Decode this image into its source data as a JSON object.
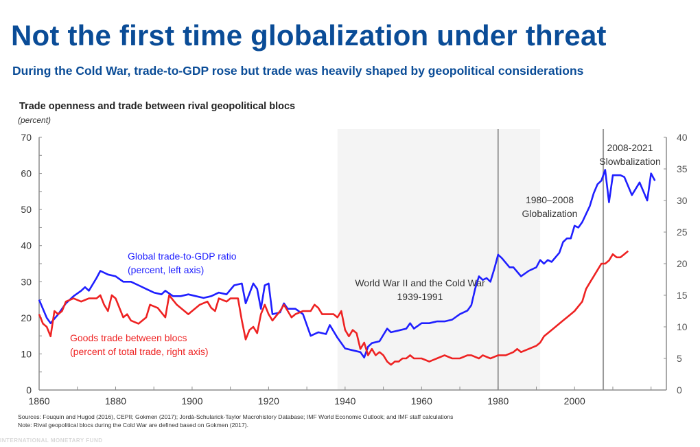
{
  "header": {
    "title": "Not the first time globalization under threat",
    "subtitle": "During the Cold War, trade-to-GDP rose but trade was heavily shaped by geopolitical considerations"
  },
  "colors": {
    "title": "#0a4c97",
    "blue_series": "#1f1fff",
    "red_series": "#ee2222",
    "shade": "#f4f4f4",
    "axis": "#8c8c8c"
  },
  "chart_data": {
    "type": "line",
    "title": "Trade openness and trade between rival geopolitical blocs",
    "unit": "(percent)",
    "xlabel": "",
    "xlim": [
      1860,
      2024
    ],
    "x_ticks": [
      1860,
      1880,
      1900,
      1920,
      1940,
      1960,
      1980,
      2000
    ],
    "x_minor_step": 10,
    "left_axis": {
      "ylim": [
        0,
        70
      ],
      "ticks": [
        0,
        10,
        20,
        30,
        40,
        50,
        60,
        70
      ]
    },
    "right_axis": {
      "ylim": [
        0,
        40
      ],
      "ticks": [
        0,
        5,
        10,
        15,
        20,
        25,
        30,
        35,
        40
      ]
    },
    "grid": false,
    "shaded_periods": [
      {
        "start": 1938,
        "end": 1991,
        "label_lines": [
          "World War II and the Cold War",
          "1939-1991"
        ]
      }
    ],
    "vertical_lines": [
      1980,
      2007.5
    ],
    "annotations": [
      {
        "year": 1994,
        "value": 50,
        "axis": "left",
        "lines": [
          "1980–2008",
          "Globalization"
        ]
      },
      {
        "year": 2015,
        "value": 65,
        "axis": "left",
        "lines": [
          "2008-2021",
          "Slowbalization"
        ]
      }
    ],
    "series": [
      {
        "name": "Global trade-to-GDP ratio",
        "label_lines": [
          "Global trade-to-GDP ratio",
          "(percent, left axis)"
        ],
        "axis": "left",
        "color": "#1f1fff",
        "x": [
          1860,
          1862,
          1863,
          1865,
          1867,
          1869,
          1871,
          1872,
          1873,
          1875,
          1876,
          1878,
          1880,
          1882,
          1884,
          1886,
          1888,
          1890,
          1892,
          1893,
          1895,
          1897,
          1899,
          1901,
          1903,
          1905,
          1907,
          1909,
          1911,
          1913,
          1914,
          1916,
          1917,
          1918,
          1919,
          1920,
          1921,
          1923,
          1924,
          1925,
          1927,
          1929,
          1931,
          1933,
          1935,
          1936,
          1938,
          1940,
          1942,
          1944,
          1945,
          1946,
          1947,
          1949,
          1951,
          1952,
          1954,
          1956,
          1957,
          1958,
          1960,
          1962,
          1964,
          1966,
          1968,
          1970,
          1972,
          1973,
          1974,
          1975,
          1976,
          1977,
          1978,
          1979,
          1980,
          1981,
          1983,
          1984,
          1986,
          1988,
          1990,
          1991,
          1992,
          1993,
          1994,
          1996,
          1997,
          1998,
          1999,
          2000,
          2001,
          2002,
          2004,
          2005,
          2006,
          2007,
          2008,
          2009,
          2010,
          2012,
          2013,
          2015,
          2017,
          2018,
          2019,
          2020,
          2021
        ],
        "values": [
          25,
          20,
          18.5,
          21,
          24,
          26,
          27.5,
          28.5,
          27.5,
          31,
          33,
          32,
          31.5,
          30,
          30,
          29,
          28,
          27,
          26.5,
          27.5,
          26,
          26,
          26.5,
          26,
          25.5,
          26,
          27,
          26.5,
          29,
          29.5,
          24,
          29.5,
          28,
          22.5,
          29,
          29.5,
          21,
          21.5,
          24,
          22.5,
          22.5,
          21,
          15,
          16,
          15.5,
          18,
          14.5,
          11.5,
          11,
          10.5,
          9,
          12,
          13,
          13.5,
          17,
          16,
          16.5,
          17,
          18.5,
          17,
          18.5,
          18.5,
          19,
          19,
          19.5,
          21,
          22,
          23.5,
          28,
          31.5,
          30.5,
          31,
          30,
          33.5,
          37.5,
          36.5,
          34,
          34,
          31.5,
          33,
          34,
          36,
          35,
          36,
          35.5,
          38,
          41,
          42,
          42,
          45.5,
          45,
          46.5,
          51,
          54.5,
          57,
          58,
          61,
          52,
          59.5,
          59.5,
          59,
          54,
          57.5,
          55,
          52.5,
          60,
          58
        ]
      },
      {
        "name": "Goods trade between blocs",
        "label_lines": [
          "Goods trade between blocs",
          "(percent of total trade, right axis)"
        ],
        "axis": "right",
        "color": "#ee2222",
        "x": [
          1860,
          1861,
          1862,
          1863,
          1864,
          1865,
          1866,
          1867,
          1869,
          1871,
          1873,
          1875,
          1876,
          1877,
          1878,
          1879,
          1880,
          1882,
          1883,
          1884,
          1886,
          1888,
          1889,
          1891,
          1893,
          1894,
          1896,
          1898,
          1899,
          1900,
          1902,
          1904,
          1905,
          1906,
          1907,
          1909,
          1910,
          1912,
          1913,
          1914,
          1915,
          1916,
          1917,
          1918,
          1919,
          1920,
          1921,
          1923,
          1924,
          1925,
          1926,
          1927,
          1929,
          1931,
          1932,
          1933,
          1934,
          1935,
          1937,
          1938,
          1939,
          1940,
          1941,
          1942,
          1943,
          1944,
          1945,
          1946,
          1947,
          1948,
          1949,
          1950,
          1951,
          1952,
          1953,
          1954,
          1955,
          1956,
          1957,
          1958,
          1960,
          1962,
          1964,
          1966,
          1968,
          1970,
          1972,
          1973,
          1975,
          1976,
          1978,
          1980,
          1982,
          1984,
          1985,
          1986,
          1988,
          1990,
          1991,
          1992,
          1993,
          1995,
          1997,
          1998,
          1999,
          2000,
          2002,
          2003,
          2004,
          2005,
          2006,
          2007,
          2008,
          2009,
          2010,
          2011,
          2012,
          2013,
          2014
        ],
        "values": [
          12,
          10.5,
          10,
          8.5,
          12.5,
          12,
          12.5,
          14,
          14.5,
          14,
          14.5,
          14.5,
          15,
          13.5,
          12.5,
          15,
          14.5,
          11.5,
          12,
          11,
          10.5,
          11.5,
          13.5,
          13,
          11.5,
          15,
          13.5,
          12.5,
          12,
          12.5,
          13.5,
          14,
          13,
          12.5,
          14.5,
          14,
          14.5,
          14.5,
          11,
          8,
          9.5,
          10,
          9,
          12,
          13.5,
          12,
          11,
          12.5,
          13.5,
          12.5,
          11.5,
          12,
          12.5,
          12.5,
          13.5,
          13,
          12,
          12,
          12,
          11.5,
          12.5,
          9.5,
          8.5,
          9.5,
          9,
          6.5,
          7.5,
          5.5,
          6.5,
          5.5,
          6,
          5.5,
          4.5,
          4,
          4.5,
          4.5,
          5,
          5,
          5.5,
          5,
          5,
          4.5,
          5,
          5.5,
          5,
          5,
          5.5,
          5.5,
          5,
          5.5,
          5,
          5.5,
          5.5,
          6,
          6.5,
          6,
          6.5,
          7,
          7.5,
          8.5,
          9,
          10,
          11,
          11.5,
          12,
          12.5,
          14,
          16,
          17,
          18,
          19,
          20,
          20,
          20.5,
          21.5,
          21,
          21,
          21.5,
          22
        ]
      }
    ]
  },
  "notes": {
    "sources": "Sources: Fouquin and Hugod (2016), CEPII; Gokmen (2017); Jordà-Schularick-Taylor  Macrohistory Database; IMF World Economic Outlook; and IMF staff calculations",
    "note": "Note: Rival  geopolitical blocs during the Cold War are defined  based on Gokmen (2017)."
  },
  "footer": {
    "organization": "INTERNATIONAL MONETARY FUND"
  }
}
